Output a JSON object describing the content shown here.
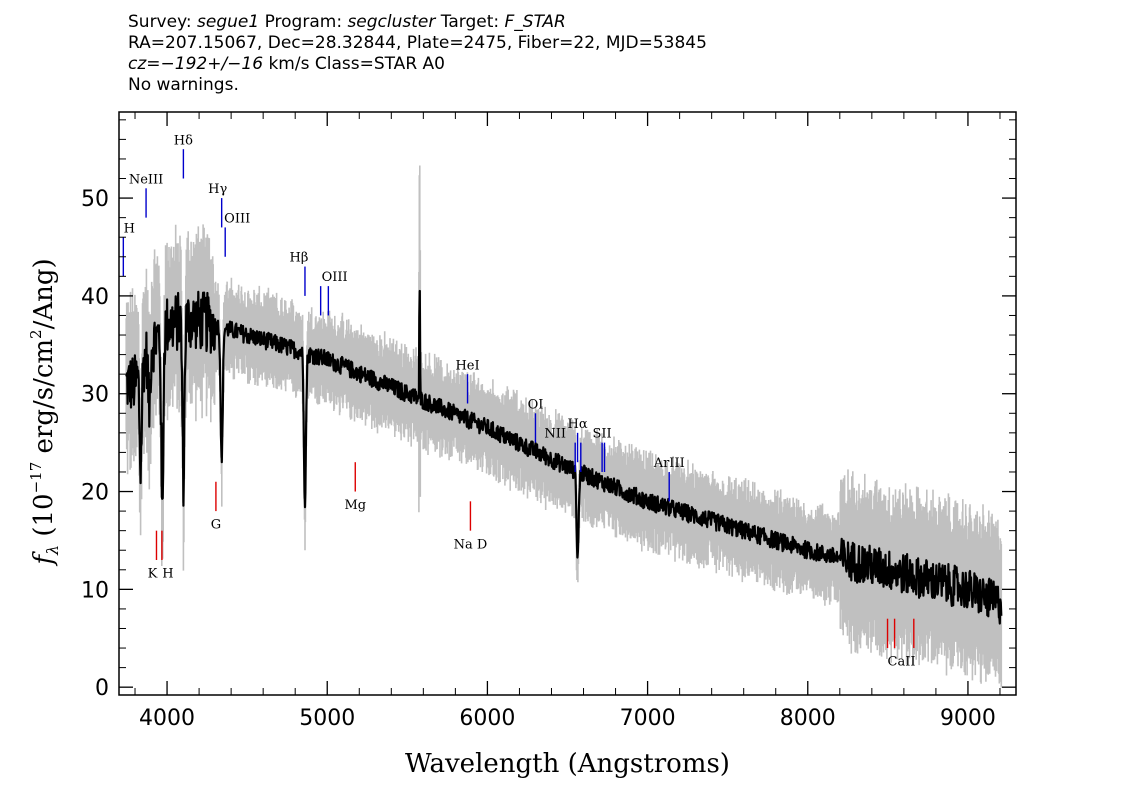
{
  "header": {
    "line1": {
      "survey_label": "Survey: ",
      "survey": "segue1",
      "program_label": " Program: ",
      "program": "segcluster",
      "target_label": " Target: ",
      "target": "F_STAR"
    },
    "line2": "RA=207.15067, Dec=28.32844, Plate=2475, Fiber=22, MJD=53845",
    "line3": {
      "cz_label": "cz=",
      "cz": "−192+/−16",
      "cz_unit": " km/s Class=STAR A0"
    },
    "line4": "No warnings."
  },
  "chart_data": {
    "type": "line",
    "title": "",
    "xlabel": "Wavelength (Angstroms)",
    "ylabel": "f_λ (10^-17 erg/s/cm^2/Ang)",
    "xlim": [
      3700,
      9300
    ],
    "ylim": [
      -0.8,
      58.8
    ],
    "grid": false,
    "x_ticks": [
      4000,
      5000,
      6000,
      7000,
      8000,
      9000
    ],
    "y_ticks": [
      0,
      10,
      20,
      30,
      40,
      50
    ],
    "x_tick_labels": [
      "4000",
      "5000",
      "6000",
      "7000",
      "8000",
      "9000"
    ],
    "y_tick_labels": [
      "0",
      "10",
      "20",
      "30",
      "40",
      "50"
    ],
    "spectrum_color": "#000000",
    "error_color": "#c0c0c0",
    "spectrum_anchors": [
      {
        "x": 3800,
        "y": 31
      },
      {
        "x": 3900,
        "y": 35
      },
      {
        "x": 4000,
        "y": 37
      },
      {
        "x": 4100,
        "y": 37.5
      },
      {
        "x": 4200,
        "y": 37.5
      },
      {
        "x": 4300,
        "y": 37
      },
      {
        "x": 4500,
        "y": 36
      },
      {
        "x": 4700,
        "y": 35
      },
      {
        "x": 5000,
        "y": 33.5
      },
      {
        "x": 5500,
        "y": 30
      },
      {
        "x": 6000,
        "y": 26.5
      },
      {
        "x": 6500,
        "y": 22.5
      },
      {
        "x": 7000,
        "y": 19
      },
      {
        "x": 7500,
        "y": 16.5
      },
      {
        "x": 8000,
        "y": 14
      },
      {
        "x": 8500,
        "y": 12
      },
      {
        "x": 9000,
        "y": 10
      },
      {
        "x": 9200,
        "y": 8.5
      }
    ],
    "absorption_features": [
      {
        "x": 3835,
        "depth": 10
      },
      {
        "x": 3889,
        "depth": 6
      },
      {
        "x": 3970,
        "depth": 19
      },
      {
        "x": 4102,
        "depth": 16
      },
      {
        "x": 4341,
        "depth": 14
      },
      {
        "x": 4861,
        "depth": 15
      },
      {
        "x": 6563,
        "depth": 9
      }
    ],
    "emission_features": [
      {
        "x": 5577,
        "height": 12
      }
    ],
    "emission_line_color": "#0000cc",
    "absorption_line_color": "#dd0000",
    "emission_lines": [
      {
        "label": "H",
        "x": 3727,
        "y0": 42,
        "y1": 46,
        "label_y": 46.5,
        "label_dx": 6
      },
      {
        "label": "NeIII",
        "x": 3869,
        "y0": 48,
        "y1": 51,
        "label_y": 51.5,
        "label_dx": 0
      },
      {
        "label": "Hδ",
        "x": 4102,
        "y0": 52,
        "y1": 55,
        "label_y": 55.5,
        "label_dx": 0
      },
      {
        "label": "Hγ",
        "x": 4341,
        "y0": 47,
        "y1": 50,
        "label_y": 50.5,
        "label_dx": -4
      },
      {
        "label": "OIII",
        "x": 4363,
        "y0": 44,
        "y1": 47,
        "label_y": 47.5,
        "label_dx": 12
      },
      {
        "label": "Hβ",
        "x": 4861,
        "y0": 40,
        "y1": 43,
        "label_y": 43.5,
        "label_dx": -6
      },
      {
        "label": "OIII",
        "x": 4959,
        "y0": 38,
        "y1": 41,
        "label_y": 41.5,
        "label_dx": 14
      },
      {
        "label": "OIII",
        "x": 5007,
        "y0": 38,
        "y1": 41,
        "label_y": 41.5,
        "label_dx": -1000
      },
      {
        "label": "HeI",
        "x": 5876,
        "y0": 29,
        "y1": 32,
        "label_y": 32.5,
        "label_dx": 0
      },
      {
        "label": "OI",
        "x": 6300,
        "y0": 25,
        "y1": 28,
        "label_y": 28.5,
        "label_dx": 0
      },
      {
        "label": "NII",
        "x": 6548,
        "y0": 22,
        "y1": 25,
        "label_y": 25.5,
        "label_dx": -20
      },
      {
        "label": "Hα",
        "x": 6563,
        "y0": 23,
        "y1": 26,
        "label_y": 26.5,
        "label_dx": 0
      },
      {
        "label": "NII",
        "x": 6583,
        "y0": 22,
        "y1": 25,
        "label_y": 25.5,
        "label_dx": -1000
      },
      {
        "label": "SII",
        "x": 6716,
        "y0": 22,
        "y1": 25,
        "label_y": 25.5,
        "label_dx": 0
      },
      {
        "label": "SII",
        "x": 6731,
        "y0": 22,
        "y1": 25,
        "label_y": 25.5,
        "label_dx": -1000
      },
      {
        "label": "ArIII",
        "x": 7135,
        "y0": 19,
        "y1": 22,
        "label_y": 22.5,
        "label_dx": 0
      }
    ],
    "absorption_lines": [
      {
        "label": "K",
        "x": 3934,
        "y0": 13,
        "y1": 16,
        "label_y": 11.2,
        "label_dx": -4
      },
      {
        "label": "H",
        "x": 3968,
        "y0": 13,
        "y1": 16,
        "label_y": 11.2,
        "label_dx": 6
      },
      {
        "label": "G",
        "x": 4305,
        "y0": 18,
        "y1": 21,
        "label_y": 16.2,
        "label_dx": 0
      },
      {
        "label": "Mg",
        "x": 5175,
        "y0": 20,
        "y1": 23,
        "label_y": 18.2,
        "label_dx": 0
      },
      {
        "label": "Na  D",
        "x": 5894,
        "y0": 16,
        "y1": 19,
        "label_y": 14.2,
        "label_dx": 0
      },
      {
        "label": "CaII",
        "x": 8498,
        "y0": 4,
        "y1": 7,
        "label_y": 2.2,
        "label_dx": 14
      },
      {
        "label": "CaII",
        "x": 8542,
        "y0": 4,
        "y1": 7,
        "label_y": 2.2,
        "label_dx": -1000
      },
      {
        "label": "CaII",
        "x": 8662,
        "y0": 4,
        "y1": 7,
        "label_y": 2.2,
        "label_dx": -1000
      }
    ]
  }
}
